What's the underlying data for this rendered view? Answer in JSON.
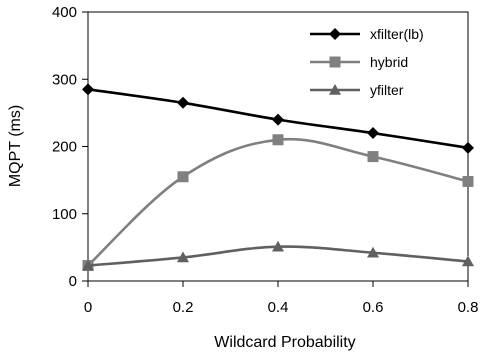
{
  "chart_data": {
    "type": "line",
    "title": "",
    "xlabel": "Wildcard Probability",
    "ylabel": "MQPT (ms)",
    "x": [
      0,
      0.2,
      0.4,
      0.6,
      0.8
    ],
    "x_tick_labels": [
      "0",
      "0.2",
      "0.4",
      "0.6",
      "0.8"
    ],
    "y_tick_labels": [
      "0",
      "100",
      "200",
      "300",
      "400"
    ],
    "xlim": [
      0,
      0.8
    ],
    "ylim": [
      0,
      400
    ],
    "grid": false,
    "legend_position": "top-right",
    "series": [
      {
        "name": "xfilter(lb)",
        "values": [
          285,
          265,
          240,
          220,
          198
        ],
        "color": "#000000",
        "marker": "diamond"
      },
      {
        "name": "hybrid",
        "values": [
          23,
          155,
          210,
          185,
          148
        ],
        "color": "#808080",
        "marker": "square"
      },
      {
        "name": "yfilter",
        "values": [
          23,
          35,
          51,
          42,
          29
        ],
        "color": "#606060",
        "marker": "triangle"
      }
    ]
  }
}
